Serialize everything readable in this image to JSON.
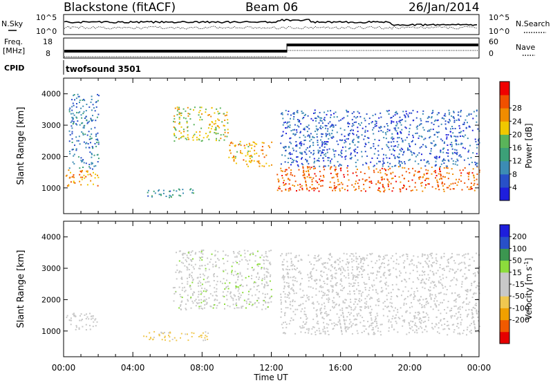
{
  "header": {
    "station": "Blackstone (fitACF)",
    "beam": "Beam 06",
    "date": "26/Jan/2014"
  },
  "noise_panel": {
    "left_label": "N.Sky",
    "left_ticks": [
      "10^5",
      "10^0"
    ],
    "right_label": "N.Search",
    "right_ticks": [
      "10^5",
      "10^0"
    ]
  },
  "freq_panel": {
    "left_label": "Freq.",
    "left_unit": "[MHz]",
    "left_ticks": [
      "18",
      "8"
    ],
    "right_label": "Nave",
    "right_ticks": [
      "60",
      "0"
    ],
    "cpid_label": "CPID",
    "cpid_value": "twofsound 3501"
  },
  "colors": {
    "power_scale": [
      "#1e1edc",
      "#2850c8",
      "#3c8cb4",
      "#3ca078",
      "#5ab45a",
      "#f0c800",
      "#f08c00",
      "#f05000",
      "#f00000"
    ],
    "velocity_scale": [
      "#e60000",
      "#f05a00",
      "#f0a000",
      "#f0c850",
      "#c8c8c8",
      "#c8c8c8",
      "#8cdc3c",
      "#3c9650",
      "#2850c8",
      "#1e1edc"
    ]
  },
  "chart_data": [
    {
      "type": "heatmap",
      "title": "",
      "xlabel": "",
      "ylabel": "Slant Range [km]",
      "xlim": [
        "00:00",
        "24:00"
      ],
      "ylim": [
        180,
        4500
      ],
      "y_ticks": [
        "1000",
        "2000",
        "3000",
        "4000"
      ],
      "colorbar": {
        "label": "Power [dB]",
        "ticks": [
          "4",
          "8",
          "12",
          "16",
          "20",
          "24",
          "28"
        ],
        "range": [
          0,
          30
        ]
      },
      "scatter_regions": [
        {
          "t_start": 0.1,
          "t_end": 2.0,
          "range_start": 1050,
          "range_end": 1600,
          "value": 22
        },
        {
          "t_start": 0.3,
          "t_end": 2.0,
          "range_start": 1600,
          "range_end": 4000,
          "value": 8
        },
        {
          "t_start": 4.8,
          "t_end": 7.5,
          "range_start": 700,
          "range_end": 1000,
          "value": 10
        },
        {
          "t_start": 6.3,
          "t_end": 9.5,
          "range_start": 2500,
          "range_end": 3600,
          "value": 18
        },
        {
          "t_start": 9.5,
          "t_end": 12.0,
          "range_start": 1700,
          "range_end": 2500,
          "value": 20
        },
        {
          "t_start": 12.3,
          "t_end": 24.0,
          "range_start": 900,
          "range_end": 1700,
          "value": 24
        },
        {
          "t_start": 12.5,
          "t_end": 24.0,
          "range_start": 1700,
          "range_end": 3500,
          "value": 6
        }
      ]
    },
    {
      "type": "heatmap",
      "title": "",
      "xlabel": "Time UT",
      "ylabel": "Slant Range [km]",
      "xlim": [
        "00:00",
        "24:00"
      ],
      "ylim": [
        180,
        4500
      ],
      "x_ticks": [
        "00:00",
        "04:00",
        "08:00",
        "12:00",
        "16:00",
        "20:00",
        "00:00"
      ],
      "y_ticks": [
        "1000",
        "2000",
        "3000",
        "4000"
      ],
      "colorbar": {
        "label": "Velocity [m s-1]",
        "label_base": "Velocity [m s",
        "label_exp": "-1",
        "label_end": "]",
        "ticks": [
          "200",
          "100",
          "50",
          "15",
          "-15",
          "-50",
          "-100",
          "-200"
        ],
        "range": [
          -250,
          250
        ]
      },
      "scatter_regions": [
        {
          "t_start": 0.1,
          "t_end": 2.0,
          "range_start": 1050,
          "range_end": 1600,
          "value": 0
        },
        {
          "t_start": 4.5,
          "t_end": 8.5,
          "range_start": 700,
          "range_end": 1000,
          "value": -70
        },
        {
          "t_start": 6.3,
          "t_end": 12.0,
          "range_start": 1700,
          "range_end": 3600,
          "value": 30
        },
        {
          "t_start": 12.5,
          "t_end": 24.0,
          "range_start": 900,
          "range_end": 1700,
          "value": 0
        },
        {
          "t_start": 12.5,
          "t_end": 24.0,
          "range_start": 1700,
          "range_end": 3500,
          "value": 20
        }
      ]
    }
  ]
}
